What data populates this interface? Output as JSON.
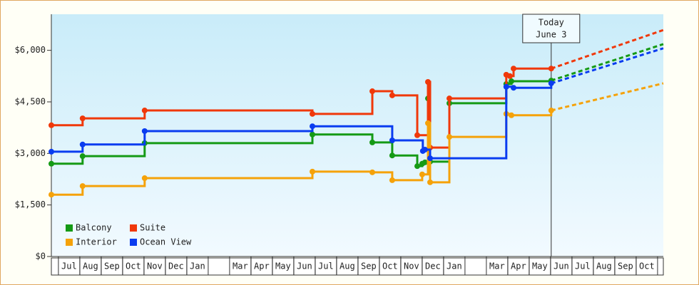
{
  "chart_data": {
    "type": "step",
    "xlim": [
      -0.33,
      28.27
    ],
    "ylim": [
      0,
      7050
    ],
    "yticks": [
      {
        "value": 0,
        "label": "$0"
      },
      {
        "value": 1500,
        "label": "$1,500"
      },
      {
        "value": 3000,
        "label": "$3,000"
      },
      {
        "value": 4500,
        "label": "$4,500"
      },
      {
        "value": 6000,
        "label": "$6,000"
      }
    ],
    "xticks": [
      {
        "value": 0.5,
        "label": "Jul"
      },
      {
        "value": 1.5,
        "label": "Aug"
      },
      {
        "value": 2.5,
        "label": "Sep"
      },
      {
        "value": 3.5,
        "label": "Oct"
      },
      {
        "value": 4.5,
        "label": "Nov"
      },
      {
        "value": 5.5,
        "label": "Dec"
      },
      {
        "value": 6.5,
        "label": "Jan"
      },
      {
        "value": 8.5,
        "label": "Mar"
      },
      {
        "value": 9.5,
        "label": "Apr"
      },
      {
        "value": 10.5,
        "label": "May"
      },
      {
        "value": 11.5,
        "label": "Jun"
      },
      {
        "value": 12.5,
        "label": "Jul"
      },
      {
        "value": 13.5,
        "label": "Aug"
      },
      {
        "value": 14.5,
        "label": "Sep"
      },
      {
        "value": 15.5,
        "label": "Oct"
      },
      {
        "value": 16.5,
        "label": "Nov"
      },
      {
        "value": 17.5,
        "label": "Dec"
      },
      {
        "value": 18.5,
        "label": "Jan"
      },
      {
        "value": 20.5,
        "label": "Mar"
      },
      {
        "value": 21.5,
        "label": "Apr"
      },
      {
        "value": 22.5,
        "label": "May"
      },
      {
        "value": 23.5,
        "label": "Jun"
      },
      {
        "value": 24.5,
        "label": "Jul"
      },
      {
        "value": 25.5,
        "label": "Aug"
      },
      {
        "value": 26.5,
        "label": "Sep"
      },
      {
        "value": 27.5,
        "label": "Oct"
      }
    ],
    "annotation": {
      "x": 23.03,
      "lines": [
        "Today",
        "June 3"
      ]
    },
    "legend": "lower-left",
    "series": [
      {
        "name": "Balcony",
        "color": "#159a15",
        "x": [
          -0.33,
          1.13,
          4.03,
          11.87,
          14.67,
          15.6,
          16.77,
          17.0,
          17.13,
          17.27,
          17.37,
          18.27,
          20.93,
          21.17,
          23.03
        ],
        "values": [
          2700,
          2920,
          3300,
          3550,
          3320,
          2940,
          2630,
          2700,
          2740,
          4600,
          2760,
          4460,
          5020,
          5100,
          5120
        ],
        "projection": {
          "x": [
            23.03,
            28.27
          ],
          "values": [
            5120,
            6180
          ]
        }
      },
      {
        "name": "Suite",
        "color": "#f0380a",
        "x": [
          -0.33,
          1.13,
          4.03,
          11.87,
          14.67,
          15.6,
          16.77,
          17.27,
          17.37,
          18.27,
          20.93,
          21.1,
          21.27,
          23.03
        ],
        "values": [
          3820,
          4020,
          4250,
          4150,
          4810,
          4690,
          3530,
          5080,
          3170,
          4600,
          5290,
          5250,
          5470,
          5470
        ],
        "projection": {
          "x": [
            23.03,
            28.27
          ],
          "values": [
            5470,
            6590
          ]
        }
      },
      {
        "name": "Interior",
        "color": "#f5a20a",
        "x": [
          -0.33,
          1.13,
          4.03,
          11.87,
          14.67,
          15.6,
          17.0,
          17.27,
          17.37,
          18.27,
          20.93,
          21.17,
          23.03
        ],
        "values": [
          1800,
          2050,
          2280,
          2470,
          2450,
          2220,
          2390,
          3880,
          2160,
          3480,
          4150,
          4110,
          4250
        ],
        "projection": {
          "x": [
            23.03,
            28.27
          ],
          "values": [
            4250,
            5040
          ]
        }
      },
      {
        "name": "Ocean View",
        "color": "#0a3cf0",
        "x": [
          -0.33,
          1.13,
          4.03,
          11.87,
          15.6,
          17.03,
          17.13,
          17.37,
          20.93,
          21.27,
          23.03
        ],
        "values": [
          3050,
          3260,
          3650,
          3790,
          3380,
          3070,
          3110,
          2860,
          4940,
          4910,
          5040
        ],
        "projection": {
          "x": [
            23.03,
            28.27
          ],
          "values": [
            5040,
            6060
          ]
        }
      }
    ]
  }
}
